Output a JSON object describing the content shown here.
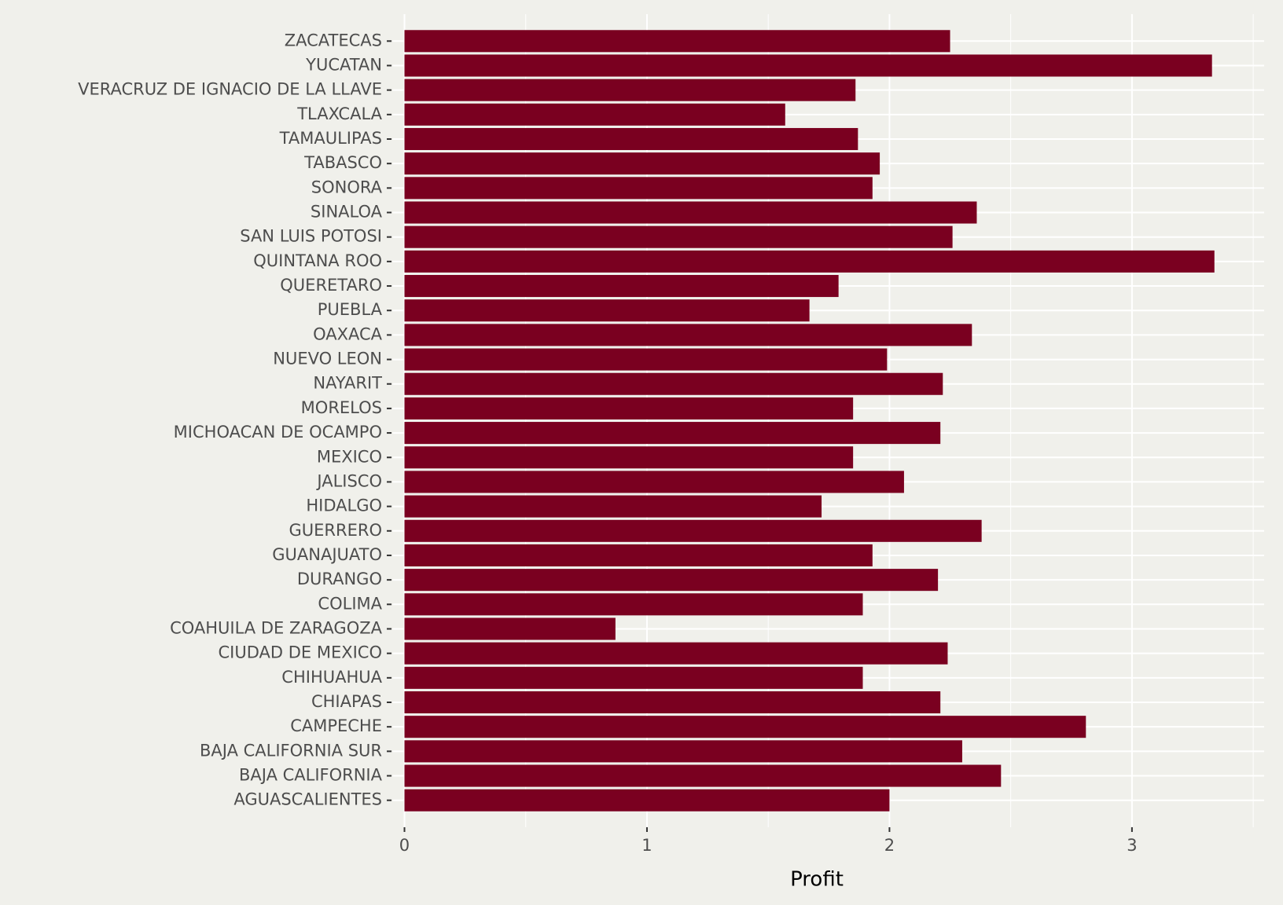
{
  "chart_data": {
    "type": "bar",
    "orientation": "horizontal",
    "x_label": "Profit",
    "categories": [
      "AGUASCALIENTES",
      "BAJA CALIFORNIA",
      "BAJA CALIFORNIA SUR",
      "CAMPECHE",
      "CHIAPAS",
      "CHIHUAHUA",
      "CIUDAD DE MEXICO",
      "COAHUILA DE ZARAGOZA",
      "COLIMA",
      "DURANGO",
      "GUANAJUATO",
      "GUERRERO",
      "HIDALGO",
      "JALISCO",
      "MEXICO",
      "MICHOACAN DE OCAMPO",
      "MORELOS",
      "NAYARIT",
      "NUEVO LEON",
      "OAXACA",
      "PUEBLA",
      "QUERETARO",
      "QUINTANA ROO",
      "SAN LUIS POTOSI",
      "SINALOA",
      "SONORA",
      "TABASCO",
      "TAMAULIPAS",
      "TLAXCALA",
      "VERACRUZ DE IGNACIO DE LA LLAVE",
      "YUCATAN",
      "ZACATECAS"
    ],
    "values": [
      2.0,
      2.46,
      2.3,
      2.81,
      2.21,
      1.89,
      2.24,
      0.87,
      1.89,
      2.2,
      1.93,
      2.38,
      1.72,
      2.06,
      1.85,
      2.21,
      1.85,
      2.22,
      1.99,
      2.34,
      1.67,
      1.79,
      3.34,
      2.26,
      2.36,
      1.93,
      1.96,
      1.87,
      1.57,
      1.86,
      3.33,
      2.25
    ],
    "color": "#7a0020",
    "xlim": [
      -0.047,
      3.545
    ],
    "xticks": [
      0,
      1,
      2,
      3
    ],
    "minor_xticks": [
      0.5,
      1.5,
      2.5,
      3.5
    ],
    "grid": true
  }
}
